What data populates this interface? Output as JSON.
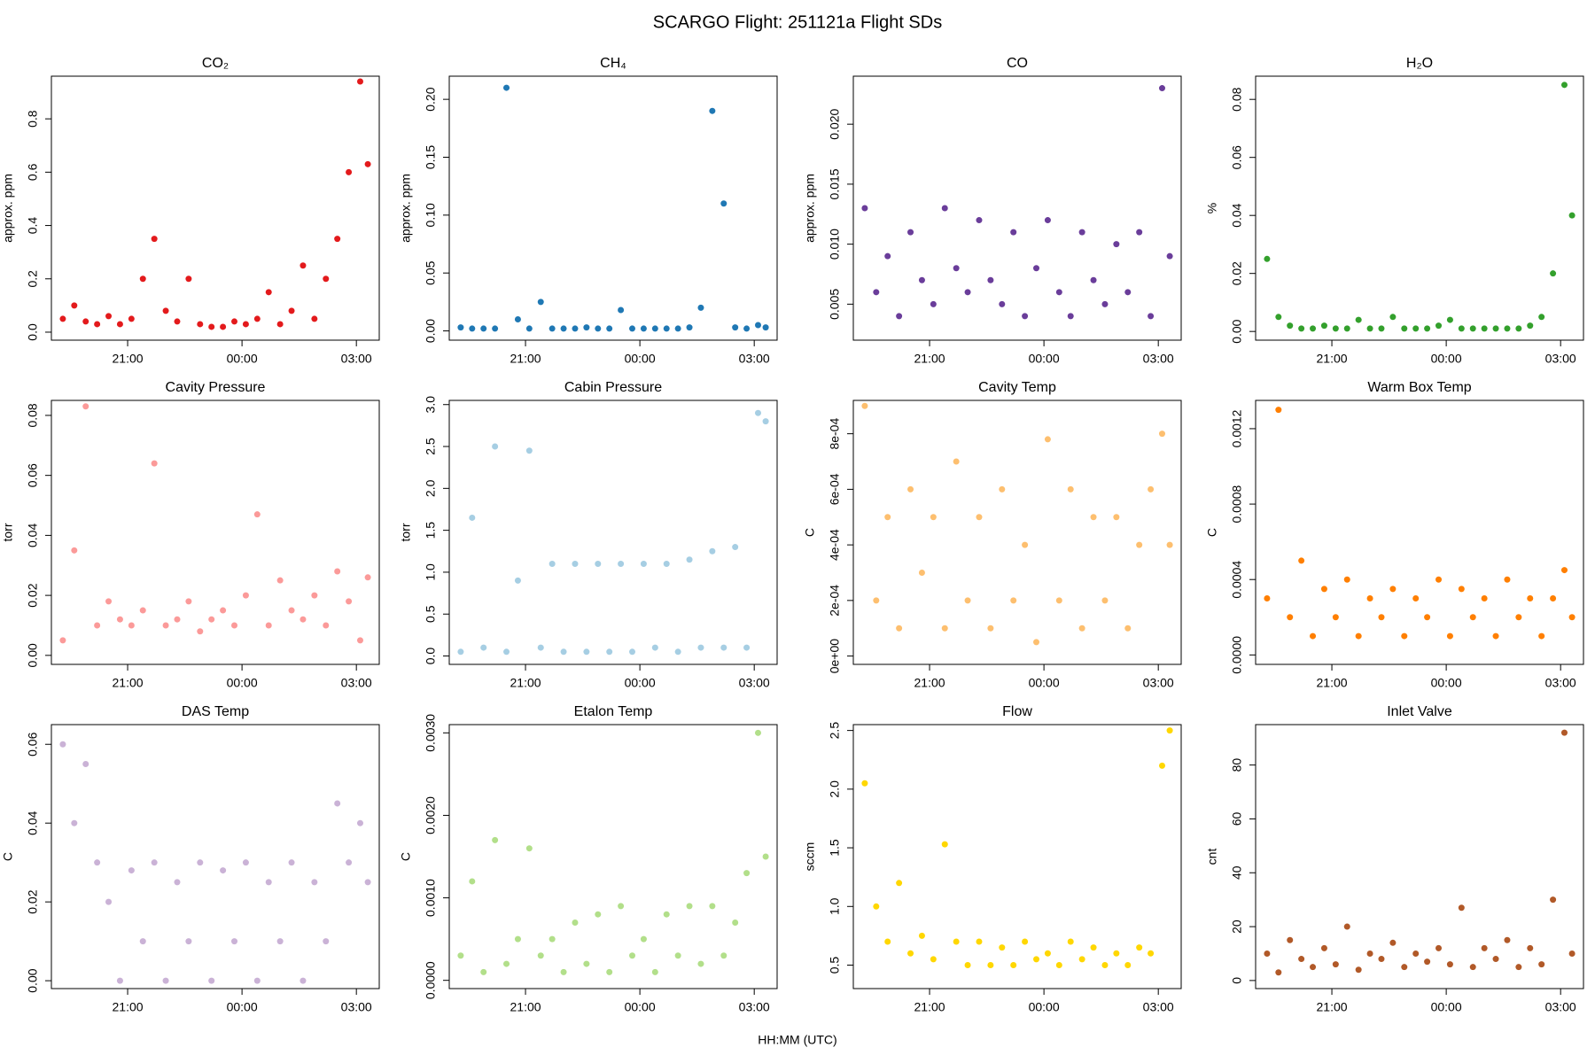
{
  "title": "SCARGO Flight: 251121a  Flight SDs",
  "xlabel": "HH:MM (UTC)",
  "chart_data": [
    {
      "type": "scatter",
      "title": "CO₂",
      "ylabel": "approx. ppm",
      "color": "#e31a1c",
      "x": [
        19.3,
        19.6,
        19.9,
        20.2,
        20.5,
        20.8,
        21.1,
        21.4,
        21.7,
        22.0,
        22.3,
        22.6,
        22.9,
        23.2,
        23.5,
        23.8,
        24.1,
        24.4,
        24.7,
        25.0,
        25.3,
        25.6,
        25.9,
        26.2,
        26.5,
        26.8,
        27.1,
        27.3
      ],
      "values": [
        0.05,
        0.1,
        0.04,
        0.03,
        0.06,
        0.03,
        0.05,
        0.2,
        0.35,
        0.08,
        0.04,
        0.2,
        0.03,
        0.02,
        0.02,
        0.04,
        0.03,
        0.05,
        0.15,
        0.03,
        0.08,
        0.25,
        0.05,
        0.2,
        0.35,
        0.6,
        0.94,
        0.63
      ],
      "xlim": [
        19.0,
        27.6
      ],
      "ylim": [
        -0.03,
        0.96
      ],
      "xticks": [
        {
          "value": 21,
          "label": "21:00"
        },
        {
          "value": 24,
          "label": "00:00"
        },
        {
          "value": 27,
          "label": "03:00"
        }
      ],
      "yticks": [
        {
          "value": 0,
          "label": "0.0"
        },
        0.2,
        0.4,
        0.6,
        0.8
      ]
    },
    {
      "type": "scatter",
      "title": "CH₄",
      "ylabel": "approx. ppm",
      "color": "#1f78b4",
      "x": [
        19.3,
        19.6,
        19.9,
        20.2,
        20.5,
        20.8,
        21.1,
        21.4,
        21.7,
        22.0,
        22.3,
        22.6,
        22.9,
        23.2,
        23.5,
        23.8,
        24.1,
        24.4,
        24.7,
        25.0,
        25.3,
        25.6,
        25.9,
        26.2,
        26.5,
        26.8,
        27.1,
        27.3
      ],
      "values": [
        0.003,
        0.002,
        0.002,
        0.002,
        0.21,
        0.01,
        0.002,
        0.025,
        0.002,
        0.002,
        0.002,
        0.003,
        0.002,
        0.002,
        0.018,
        0.002,
        0.002,
        0.002,
        0.002,
        0.002,
        0.003,
        0.02,
        0.19,
        0.11,
        0.003,
        0.002,
        0.005,
        0.003
      ],
      "xlim": [
        19.0,
        27.6
      ],
      "ylim": [
        -0.008,
        0.22
      ],
      "xticks": [
        {
          "value": 21,
          "label": "21:00"
        },
        {
          "value": 24,
          "label": "00:00"
        },
        {
          "value": 27,
          "label": "03:00"
        }
      ],
      "yticks": [
        {
          "value": 0,
          "label": "0.00"
        },
        0.05,
        {
          "value": 0.1,
          "label": "0.10"
        },
        0.15,
        {
          "value": 0.2,
          "label": "0.20"
        }
      ]
    },
    {
      "type": "scatter",
      "title": "CO",
      "ylabel": "approx. ppm",
      "color": "#6a3d9a",
      "x": [
        19.3,
        19.6,
        19.9,
        20.2,
        20.5,
        20.8,
        21.1,
        21.4,
        21.7,
        22.0,
        22.3,
        22.6,
        22.9,
        23.2,
        23.5,
        23.8,
        24.1,
        24.4,
        24.7,
        25.0,
        25.3,
        25.6,
        25.9,
        26.2,
        26.5,
        26.8,
        27.1,
        27.3
      ],
      "values": [
        0.013,
        0.006,
        0.009,
        0.004,
        0.011,
        0.007,
        0.005,
        0.013,
        0.008,
        0.006,
        0.012,
        0.007,
        0.005,
        0.011,
        0.004,
        0.008,
        0.012,
        0.006,
        0.004,
        0.011,
        0.007,
        0.005,
        0.01,
        0.006,
        0.011,
        0.004,
        0.023,
        0.009
      ],
      "xlim": [
        19.0,
        27.6
      ],
      "ylim": [
        0.002,
        0.024
      ],
      "xticks": [
        {
          "value": 21,
          "label": "21:00"
        },
        {
          "value": 24,
          "label": "00:00"
        },
        {
          "value": 27,
          "label": "03:00"
        }
      ],
      "yticks": [
        0.005,
        {
          "value": 0.01,
          "label": "0.010"
        },
        0.015,
        {
          "value": 0.02,
          "label": "0.020"
        }
      ]
    },
    {
      "type": "scatter",
      "title": "H₂O",
      "ylabel": "%",
      "color": "#33a02c",
      "x": [
        19.3,
        19.6,
        19.9,
        20.2,
        20.5,
        20.8,
        21.1,
        21.4,
        21.7,
        22.0,
        22.3,
        22.6,
        22.9,
        23.2,
        23.5,
        23.8,
        24.1,
        24.4,
        24.7,
        25.0,
        25.3,
        25.6,
        25.9,
        26.2,
        26.5,
        26.8,
        27.1,
        27.3
      ],
      "values": [
        0.025,
        0.005,
        0.002,
        0.001,
        0.001,
        0.002,
        0.001,
        0.001,
        0.004,
        0.001,
        0.001,
        0.005,
        0.001,
        0.001,
        0.001,
        0.002,
        0.004,
        0.001,
        0.001,
        0.001,
        0.001,
        0.001,
        0.001,
        0.002,
        0.005,
        0.02,
        0.085,
        0.04
      ],
      "xlim": [
        19.0,
        27.6
      ],
      "ylim": [
        -0.003,
        0.088
      ],
      "xticks": [
        {
          "value": 21,
          "label": "21:00"
        },
        {
          "value": 24,
          "label": "00:00"
        },
        {
          "value": 27,
          "label": "03:00"
        }
      ],
      "yticks": [
        {
          "value": 0,
          "label": "0.00"
        },
        0.02,
        0.04,
        0.06,
        0.08
      ]
    },
    {
      "type": "scatter",
      "title": "Cavity Pressure",
      "ylabel": "torr",
      "color": "#fb9a99",
      "x": [
        19.3,
        19.6,
        19.9,
        20.2,
        20.5,
        20.8,
        21.1,
        21.4,
        21.7,
        22.0,
        22.3,
        22.6,
        22.9,
        23.2,
        23.5,
        23.8,
        24.1,
        24.4,
        24.7,
        25.0,
        25.3,
        25.6,
        25.9,
        26.2,
        26.5,
        26.8,
        27.1,
        27.3
      ],
      "values": [
        0.005,
        0.035,
        0.083,
        0.01,
        0.018,
        0.012,
        0.01,
        0.015,
        0.064,
        0.01,
        0.012,
        0.018,
        0.008,
        0.012,
        0.015,
        0.01,
        0.02,
        0.047,
        0.01,
        0.025,
        0.015,
        0.012,
        0.02,
        0.01,
        0.028,
        0.018,
        0.005,
        0.026
      ],
      "xlim": [
        19.0,
        27.6
      ],
      "ylim": [
        -0.003,
        0.085
      ],
      "xticks": [
        {
          "value": 21,
          "label": "21:00"
        },
        {
          "value": 24,
          "label": "00:00"
        },
        {
          "value": 27,
          "label": "03:00"
        }
      ],
      "yticks": [
        {
          "value": 0,
          "label": "0.00"
        },
        0.02,
        0.04,
        0.06,
        0.08
      ]
    },
    {
      "type": "scatter",
      "title": "Cabin Pressure",
      "ylabel": "torr",
      "color": "#a6cee3",
      "x": [
        19.3,
        19.6,
        19.9,
        20.2,
        20.5,
        20.8,
        21.1,
        21.4,
        21.7,
        22.0,
        22.3,
        22.6,
        22.9,
        23.2,
        23.5,
        23.8,
        24.1,
        24.4,
        24.7,
        25.0,
        25.3,
        25.6,
        25.9,
        26.2,
        26.5,
        26.8,
        27.1,
        27.3
      ],
      "values": [
        0.05,
        1.65,
        0.1,
        2.5,
        0.05,
        0.9,
        2.45,
        0.1,
        1.1,
        0.05,
        1.1,
        0.05,
        1.1,
        0.05,
        1.1,
        0.05,
        1.1,
        0.1,
        1.1,
        0.05,
        1.15,
        0.1,
        1.25,
        0.1,
        1.3,
        0.1,
        2.9,
        2.8
      ],
      "xlim": [
        19.0,
        27.6
      ],
      "ylim": [
        -0.1,
        3.05
      ],
      "xticks": [
        {
          "value": 21,
          "label": "21:00"
        },
        {
          "value": 24,
          "label": "00:00"
        },
        {
          "value": 27,
          "label": "03:00"
        }
      ],
      "yticks": [
        {
          "value": 0,
          "label": "0.0"
        },
        0.5,
        {
          "value": 1,
          "label": "1.0"
        },
        1.5,
        {
          "value": 2,
          "label": "2.0"
        },
        2.5,
        {
          "value": 3,
          "label": "3.0"
        }
      ]
    },
    {
      "type": "scatter",
      "title": "Cavity Temp",
      "ylabel": "C",
      "color": "#fdbf6f",
      "x": [
        19.3,
        19.6,
        19.9,
        20.2,
        20.5,
        20.8,
        21.1,
        21.4,
        21.7,
        22.0,
        22.3,
        22.6,
        22.9,
        23.2,
        23.5,
        23.8,
        24.1,
        24.4,
        24.7,
        25.0,
        25.3,
        25.6,
        25.9,
        26.2,
        26.5,
        26.8,
        27.1,
        27.3
      ],
      "values": [
        0.0009,
        0.0002,
        0.0005,
        0.0001,
        0.0006,
        0.0003,
        0.0005,
        0.0001,
        0.0007,
        0.0002,
        0.0005,
        0.0001,
        0.0006,
        0.0002,
        0.0004,
        5e-05,
        0.00078,
        0.0002,
        0.0006,
        0.0001,
        0.0005,
        0.0002,
        0.0005,
        0.0001,
        0.0004,
        0.0006,
        0.0008,
        0.0004
      ],
      "xlim": [
        19.0,
        27.6
      ],
      "ylim": [
        -3e-05,
        0.00092
      ],
      "xticks": [
        {
          "value": 21,
          "label": "21:00"
        },
        {
          "value": 24,
          "label": "00:00"
        },
        {
          "value": 27,
          "label": "03:00"
        }
      ],
      "yticks": [
        {
          "value": 0,
          "label": "0e+00"
        },
        {
          "value": 0.0002,
          "label": "2e-04"
        },
        {
          "value": 0.0004,
          "label": "4e-04"
        },
        {
          "value": 0.0006,
          "label": "6e-04"
        },
        {
          "value": 0.0008,
          "label": "8e-04"
        }
      ]
    },
    {
      "type": "scatter",
      "title": "Warm Box Temp",
      "ylabel": "C",
      "color": "#ff7f00",
      "x": [
        19.3,
        19.6,
        19.9,
        20.2,
        20.5,
        20.8,
        21.1,
        21.4,
        21.7,
        22.0,
        22.3,
        22.6,
        22.9,
        23.2,
        23.5,
        23.8,
        24.1,
        24.4,
        24.7,
        25.0,
        25.3,
        25.6,
        25.9,
        26.2,
        26.5,
        26.8,
        27.1,
        27.3
      ],
      "values": [
        0.0003,
        0.0013,
        0.0002,
        0.0005,
        0.0001,
        0.00035,
        0.0002,
        0.0004,
        0.0001,
        0.0003,
        0.0002,
        0.00035,
        0.0001,
        0.0003,
        0.0002,
        0.0004,
        0.0001,
        0.00035,
        0.0002,
        0.0003,
        0.0001,
        0.0004,
        0.0002,
        0.0003,
        0.0001,
        0.0003,
        0.00045,
        0.0002
      ],
      "xlim": [
        19.0,
        27.6
      ],
      "ylim": [
        -5e-05,
        0.00135
      ],
      "xticks": [
        {
          "value": 21,
          "label": "21:00"
        },
        {
          "value": 24,
          "label": "00:00"
        },
        {
          "value": 27,
          "label": "03:00"
        }
      ],
      "yticks": [
        {
          "value": 0,
          "label": "0.0000"
        },
        {
          "value": 0.0004,
          "label": "0.0004"
        },
        {
          "value": 0.0008,
          "label": "0.0008"
        },
        {
          "value": 0.0012,
          "label": "0.0012"
        }
      ]
    },
    {
      "type": "scatter",
      "title": "DAS Temp",
      "ylabel": "C",
      "color": "#cab2d6",
      "x": [
        19.3,
        19.6,
        19.9,
        20.2,
        20.5,
        20.8,
        21.1,
        21.4,
        21.7,
        22.0,
        22.3,
        22.6,
        22.9,
        23.2,
        23.5,
        23.8,
        24.1,
        24.4,
        24.7,
        25.0,
        25.3,
        25.6,
        25.9,
        26.2,
        26.5,
        26.8,
        27.1,
        27.3
      ],
      "values": [
        0.06,
        0.04,
        0.055,
        0.03,
        0.02,
        0.0,
        0.028,
        0.01,
        0.03,
        0.0,
        0.025,
        0.01,
        0.03,
        0.0,
        0.028,
        0.01,
        0.03,
        0.0,
        0.025,
        0.01,
        0.03,
        0.0,
        0.025,
        0.01,
        0.045,
        0.03,
        0.04,
        0.025
      ],
      "xlim": [
        19.0,
        27.6
      ],
      "ylim": [
        -0.002,
        0.065
      ],
      "xticks": [
        {
          "value": 21,
          "label": "21:00"
        },
        {
          "value": 24,
          "label": "00:00"
        },
        {
          "value": 27,
          "label": "03:00"
        }
      ],
      "yticks": [
        {
          "value": 0,
          "label": "0.00"
        },
        0.02,
        0.04,
        0.06
      ]
    },
    {
      "type": "scatter",
      "title": "Etalon Temp",
      "ylabel": "C",
      "color": "#b2df8a",
      "x": [
        19.3,
        19.6,
        19.9,
        20.2,
        20.5,
        20.8,
        21.1,
        21.4,
        21.7,
        22.0,
        22.3,
        22.6,
        22.9,
        23.2,
        23.5,
        23.8,
        24.1,
        24.4,
        24.7,
        25.0,
        25.3,
        25.6,
        25.9,
        26.2,
        26.5,
        26.8,
        27.1,
        27.3
      ],
      "values": [
        0.0003,
        0.0012,
        0.0001,
        0.0017,
        0.0002,
        0.0005,
        0.0016,
        0.0003,
        0.0005,
        0.0001,
        0.0007,
        0.0002,
        0.0008,
        0.0001,
        0.0009,
        0.0003,
        0.0005,
        0.0001,
        0.0008,
        0.0003,
        0.0009,
        0.0002,
        0.0009,
        0.0003,
        0.0007,
        0.0013,
        0.003,
        0.0015
      ],
      "xlim": [
        19.0,
        27.6
      ],
      "ylim": [
        -0.0001,
        0.0031
      ],
      "xticks": [
        {
          "value": 21,
          "label": "21:00"
        },
        {
          "value": 24,
          "label": "00:00"
        },
        {
          "value": 27,
          "label": "03:00"
        }
      ],
      "yticks": [
        {
          "value": 0,
          "label": "0.0000"
        },
        {
          "value": 0.001,
          "label": "0.0010"
        },
        {
          "value": 0.002,
          "label": "0.0020"
        },
        {
          "value": 0.003,
          "label": "0.0030"
        }
      ]
    },
    {
      "type": "scatter",
      "title": "Flow",
      "ylabel": "sccm",
      "color": "#ffd700",
      "x": [
        19.3,
        19.6,
        19.9,
        20.2,
        20.5,
        20.8,
        21.1,
        21.4,
        21.7,
        22.0,
        22.3,
        22.6,
        22.9,
        23.2,
        23.5,
        23.8,
        24.1,
        24.4,
        24.7,
        25.0,
        25.3,
        25.6,
        25.9,
        26.2,
        26.5,
        26.8,
        27.1,
        27.3
      ],
      "values": [
        2.05,
        1.0,
        0.7,
        1.2,
        0.6,
        0.75,
        0.55,
        1.53,
        0.7,
        0.5,
        0.7,
        0.5,
        0.65,
        0.5,
        0.7,
        0.55,
        0.6,
        0.5,
        0.7,
        0.55,
        0.65,
        0.5,
        0.6,
        0.5,
        0.65,
        0.6,
        2.2,
        2.5
      ],
      "xlim": [
        19.0,
        27.6
      ],
      "ylim": [
        0.3,
        2.55
      ],
      "xticks": [
        {
          "value": 21,
          "label": "21:00"
        },
        {
          "value": 24,
          "label": "00:00"
        },
        {
          "value": 27,
          "label": "03:00"
        }
      ],
      "yticks": [
        0.5,
        {
          "value": 1,
          "label": "1.0"
        },
        1.5,
        {
          "value": 2,
          "label": "2.0"
        },
        2.5
      ]
    },
    {
      "type": "scatter",
      "title": "Inlet Valve",
      "ylabel": "cnt",
      "color": "#b15928",
      "x": [
        19.3,
        19.6,
        19.9,
        20.2,
        20.5,
        20.8,
        21.1,
        21.4,
        21.7,
        22.0,
        22.3,
        22.6,
        22.9,
        23.2,
        23.5,
        23.8,
        24.1,
        24.4,
        24.7,
        25.0,
        25.3,
        25.6,
        25.9,
        26.2,
        26.5,
        26.8,
        27.1,
        27.3
      ],
      "values": [
        10,
        3,
        15,
        8,
        5,
        12,
        6,
        20,
        4,
        10,
        8,
        14,
        5,
        10,
        7,
        12,
        6,
        27,
        5,
        12,
        8,
        15,
        5,
        12,
        6,
        30,
        92,
        10
      ],
      "xlim": [
        19.0,
        27.6
      ],
      "ylim": [
        -3,
        95
      ],
      "xticks": [
        {
          "value": 21,
          "label": "21:00"
        },
        {
          "value": 24,
          "label": "00:00"
        },
        {
          "value": 27,
          "label": "03:00"
        }
      ],
      "yticks": [
        0,
        20,
        40,
        60,
        80
      ]
    }
  ]
}
